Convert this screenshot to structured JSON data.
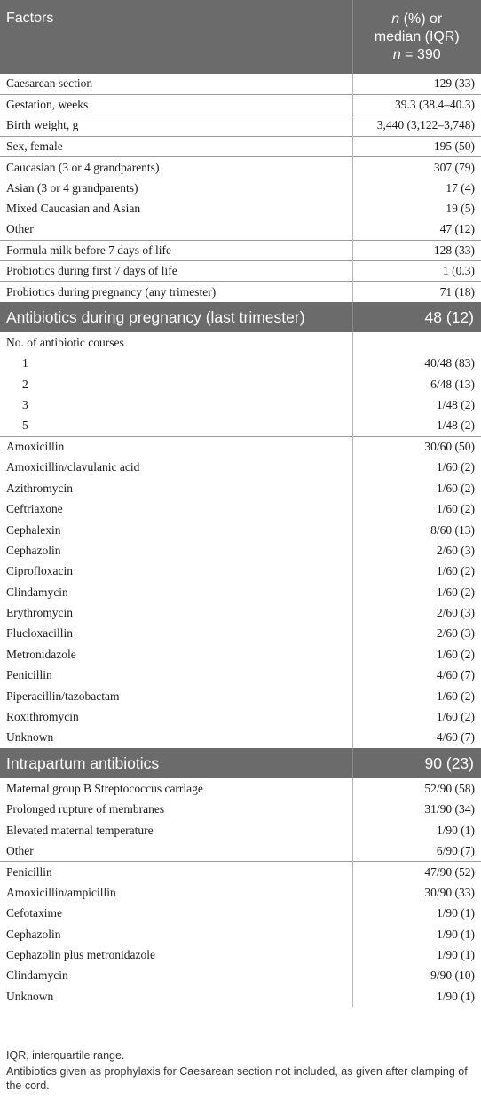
{
  "header": {
    "factors": "Factors",
    "n_italic": "n",
    "n_rest": " (%) or",
    "median": "median (IQR)",
    "count_italic": "n",
    "count_rest": " = 390"
  },
  "baseline_groups": [
    {
      "rows": [
        {
          "label": "Caesarean section",
          "value": "129 (33)"
        }
      ]
    },
    {
      "rows": [
        {
          "label": "Gestation, weeks",
          "value": "39.3 (38.4–40.3)"
        }
      ]
    },
    {
      "rows": [
        {
          "label": "Birth weight, g",
          "value": "3,440 (3,122–3,748)"
        }
      ]
    },
    {
      "rows": [
        {
          "label": "Sex, female",
          "value": "195 (50)"
        }
      ]
    },
    {
      "rows": [
        {
          "label": "Caucasian (3 or 4 grandparents)",
          "value": "307 (79)"
        },
        {
          "label": "Asian (3 or 4 grandparents)",
          "value": "17 (4)"
        },
        {
          "label": "Mixed Caucasian and Asian",
          "value": "19 (5)"
        },
        {
          "label": "Other",
          "value": "47 (12)"
        }
      ]
    },
    {
      "rows": [
        {
          "label": "Formula milk before 7 days of life",
          "value": "128 (33)"
        }
      ]
    },
    {
      "rows": [
        {
          "label": "Probiotics during first 7 days of life",
          "value": "1 (0.3)"
        }
      ]
    },
    {
      "rows": [
        {
          "label": "Probiotics during pregnancy (any trimester)",
          "value": "71 (18)"
        }
      ]
    }
  ],
  "section_pregnancy": {
    "title": "Antibiotics during pregnancy (last trimester)",
    "value": "48 (12)",
    "courses_label": "No. of antibiotic courses",
    "courses": [
      {
        "label": "1",
        "value": "40/48 (83)"
      },
      {
        "label": "2",
        "value": "6/48 (13)"
      },
      {
        "label": "3",
        "value": "1/48 (2)"
      },
      {
        "label": "5",
        "value": "1/48 (2)"
      }
    ],
    "drugs": [
      {
        "label": "Amoxicillin",
        "value": "30/60 (50)"
      },
      {
        "label": "Amoxicillin/clavulanic acid",
        "value": "1/60 (2)"
      },
      {
        "label": "Azithromycin",
        "value": "1/60 (2)"
      },
      {
        "label": "Ceftriaxone",
        "value": "1/60 (2)"
      },
      {
        "label": "Cephalexin",
        "value": "8/60 (13)"
      },
      {
        "label": "Cephazolin",
        "value": "2/60 (3)"
      },
      {
        "label": "Ciprofloxacin",
        "value": "1/60 (2)"
      },
      {
        "label": "Clindamycin",
        "value": "1/60 (2)"
      },
      {
        "label": "Erythromycin",
        "value": "2/60 (3)"
      },
      {
        "label": "Flucloxacillin",
        "value": "2/60 (3)"
      },
      {
        "label": "Metronidazole",
        "value": "1/60 (2)"
      },
      {
        "label": "Penicillin",
        "value": "4/60 (7)"
      },
      {
        "label": "Piperacillin/tazobactam",
        "value": "1/60 (2)"
      },
      {
        "label": "Roxithromycin",
        "value": "1/60 (2)"
      },
      {
        "label": "Unknown",
        "value": "4/60 (7)"
      }
    ]
  },
  "section_intrapartum": {
    "title": "Intrapartum antibiotics",
    "value": "90 (23)",
    "reasons": [
      {
        "label": "Maternal group B Streptococcus carriage",
        "value": "52/90 (58)"
      },
      {
        "label": "Prolonged rupture of membranes",
        "value": "31/90 (34)"
      },
      {
        "label": "Elevated maternal temperature",
        "value": "1/90 (1)"
      },
      {
        "label": "Other",
        "value": "6/90 (7)"
      }
    ],
    "drugs": [
      {
        "label": "Penicillin",
        "value": "47/90 (52)"
      },
      {
        "label": "Amoxicillin/ampicillin",
        "value": "30/90 (33)"
      },
      {
        "label": "Cefotaxime",
        "value": "1/90 (1)"
      },
      {
        "label": "Cephazolin",
        "value": "1/90 (1)"
      },
      {
        "label": "Cephazolin plus metronidazole",
        "value": "1/90 (1)"
      },
      {
        "label": "Clindamycin",
        "value": "9/90 (10)"
      },
      {
        "label": "Unknown",
        "value": "1/90 (1)"
      }
    ]
  },
  "footnotes": [
    "IQR, interquartile range.",
    "Antibiotics given as prophylaxis for Caesarean section not included, as given after clamping of the cord."
  ]
}
